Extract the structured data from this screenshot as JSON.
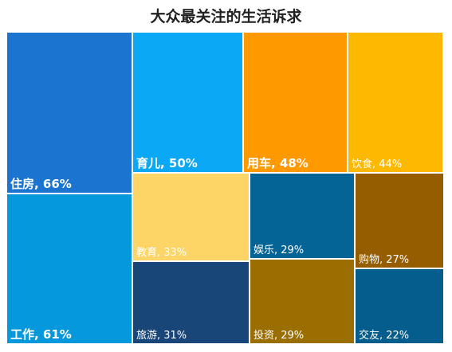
{
  "chart_data": {
    "type": "treemap",
    "title": "大众最关注的生活诉求",
    "items": [
      {
        "name": "住房",
        "value": 66,
        "label": "住房, 66%",
        "color": "#1b75d0",
        "bold": true
      },
      {
        "name": "工作",
        "value": 61,
        "label": "工作, 61%",
        "color": "#0598dd",
        "bold": true
      },
      {
        "name": "育儿",
        "value": 50,
        "label": "育儿, 50%",
        "color": "#0ba8f6",
        "bold": true
      },
      {
        "name": "用车",
        "value": 48,
        "label": "用车, 48%",
        "color": "#fe9a00",
        "bold": true
      },
      {
        "name": "饮食",
        "value": 44,
        "label": "饮食, 44%",
        "color": "#fdb900",
        "bold": false
      },
      {
        "name": "教育",
        "value": 33,
        "label": "教育, 33%",
        "color": "#fdd567",
        "bold": false
      },
      {
        "name": "旅游",
        "value": 31,
        "label": "旅游, 31%",
        "color": "#184679",
        "bold": false
      },
      {
        "name": "娱乐",
        "value": 29,
        "label": "娱乐, 29%",
        "color": "#046496",
        "bold": false
      },
      {
        "name": "投资",
        "value": 29,
        "label": "投资, 29%",
        "color": "#9a6e00",
        "bold": false
      },
      {
        "name": "购物",
        "value": 27,
        "label": "购物, 27%",
        "color": "#955c00",
        "bold": false
      },
      {
        "name": "交友",
        "value": 22,
        "label": "交友, 22%",
        "color": "#045d8c",
        "bold": false
      }
    ]
  }
}
